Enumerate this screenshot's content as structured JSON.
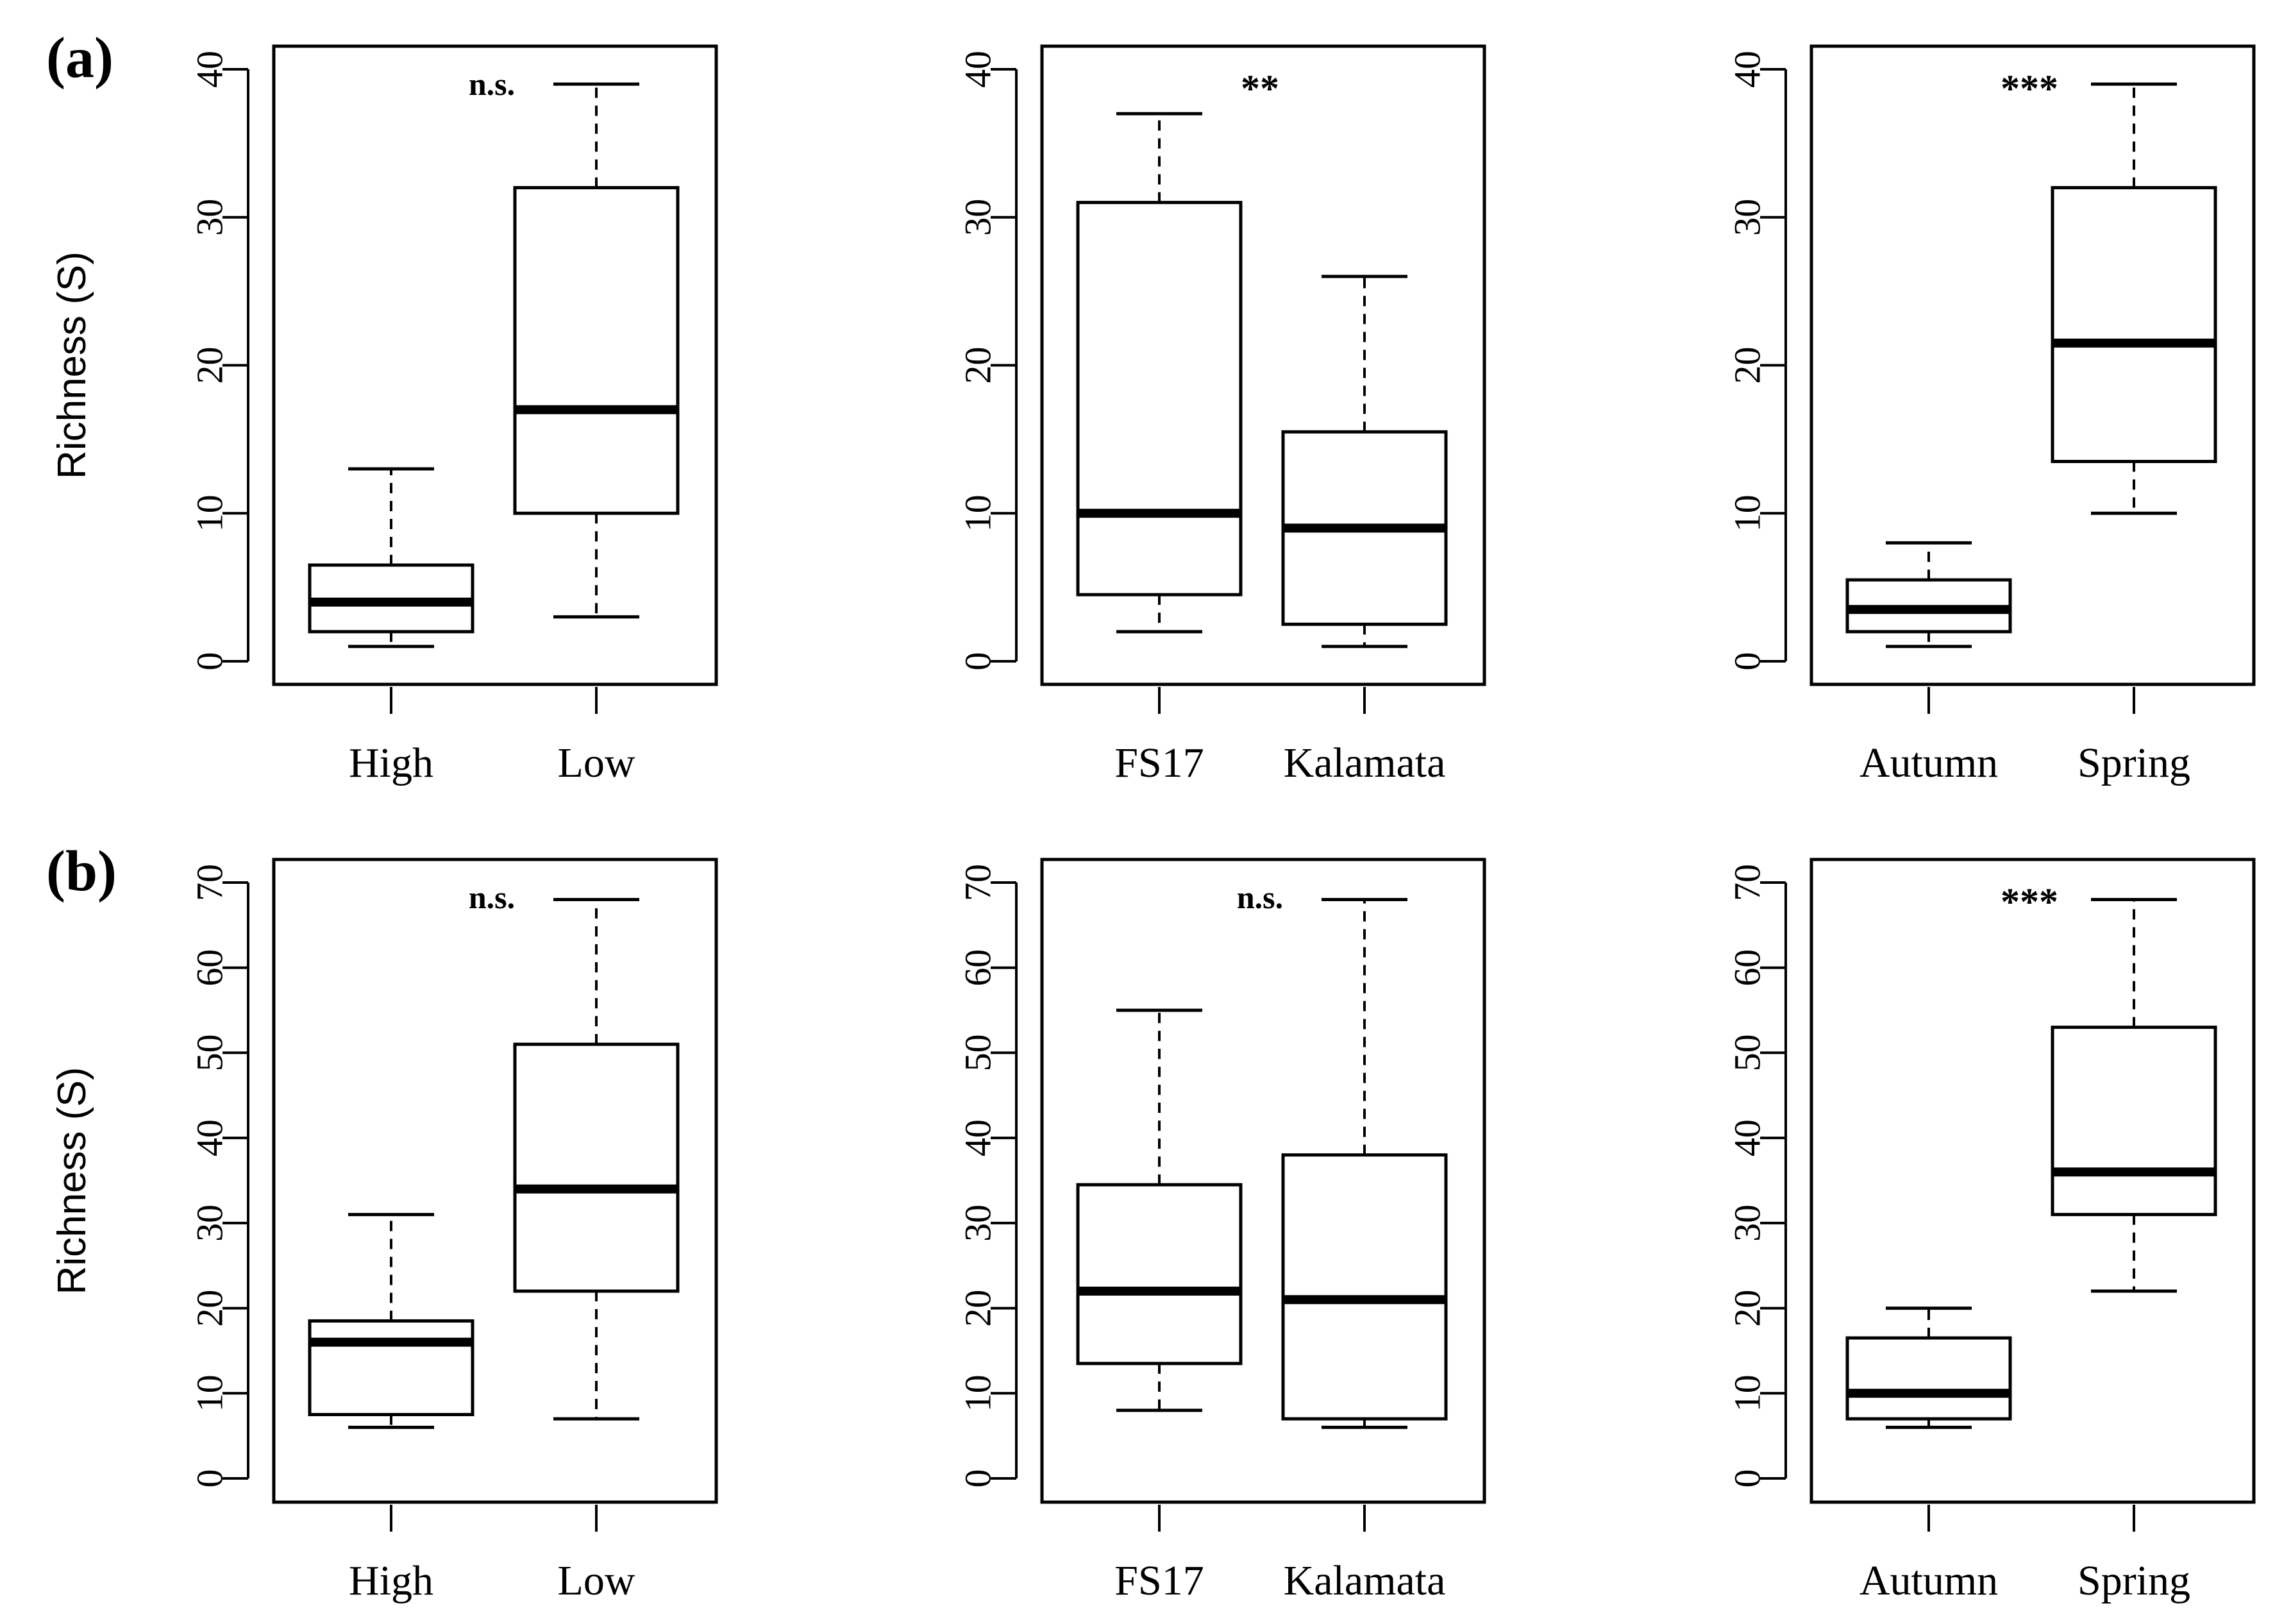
{
  "chart_data": [
    {
      "type": "box",
      "panel": "(a)",
      "ylabel": "Richness (S)",
      "ylim": [
        0,
        40
      ],
      "yticks": [
        "0",
        "10",
        "20",
        "30",
        "40"
      ],
      "annotation": "n.s.",
      "categories": [
        "High",
        "Low"
      ],
      "boxes": [
        {
          "whisker_low": 1,
          "q1": 2,
          "median": 4,
          "q3": 6.5,
          "whisker_high": 13
        },
        {
          "whisker_low": 3,
          "q1": 10,
          "median": 17,
          "q3": 32,
          "whisker_high": 39
        }
      ]
    },
    {
      "type": "box",
      "panel": "",
      "ylabel": "",
      "ylim": [
        0,
        40
      ],
      "yticks": [
        "0",
        "10",
        "20",
        "30",
        "40"
      ],
      "annotation": "**",
      "categories": [
        "FS17",
        "Kalamata"
      ],
      "boxes": [
        {
          "whisker_low": 2,
          "q1": 4.5,
          "median": 10,
          "q3": 31,
          "whisker_high": 37
        },
        {
          "whisker_low": 1,
          "q1": 2.5,
          "median": 9,
          "q3": 15.5,
          "whisker_high": 26
        }
      ]
    },
    {
      "type": "box",
      "panel": "",
      "ylabel": "",
      "ylim": [
        0,
        40
      ],
      "yticks": [
        "0",
        "10",
        "20",
        "30",
        "40"
      ],
      "annotation": "***",
      "categories": [
        "Autumn",
        "Spring"
      ],
      "boxes": [
        {
          "whisker_low": 1,
          "q1": 2,
          "median": 3.5,
          "q3": 5.5,
          "whisker_high": 8
        },
        {
          "whisker_low": 10,
          "q1": 13.5,
          "median": 21.5,
          "q3": 32,
          "whisker_high": 39
        }
      ]
    },
    {
      "type": "box",
      "panel": "(b)",
      "ylabel": "Richness (S)",
      "ylim": [
        0,
        70
      ],
      "yticks": [
        "0",
        "10",
        "20",
        "30",
        "40",
        "50",
        "60",
        "70"
      ],
      "annotation": "n.s.",
      "categories": [
        "High",
        "Low"
      ],
      "boxes": [
        {
          "whisker_low": 6,
          "q1": 7.5,
          "median": 16,
          "q3": 18.5,
          "whisker_high": 31
        },
        {
          "whisker_low": 7,
          "q1": 22,
          "median": 34,
          "q3": 51,
          "whisker_high": 68
        }
      ]
    },
    {
      "type": "box",
      "panel": "",
      "ylabel": "",
      "ylim": [
        0,
        70
      ],
      "yticks": [
        "0",
        "10",
        "20",
        "30",
        "40",
        "50",
        "60",
        "70"
      ],
      "annotation": "n.s.",
      "categories": [
        "FS17",
        "Kalamata"
      ],
      "boxes": [
        {
          "whisker_low": 8,
          "q1": 13.5,
          "median": 22,
          "q3": 34.5,
          "whisker_high": 55
        },
        {
          "whisker_low": 6,
          "q1": 7,
          "median": 21,
          "q3": 38,
          "whisker_high": 68
        }
      ]
    },
    {
      "type": "box",
      "panel": "",
      "ylabel": "",
      "ylim": [
        0,
        70
      ],
      "yticks": [
        "0",
        "10",
        "20",
        "30",
        "40",
        "50",
        "60",
        "70"
      ],
      "annotation": "***",
      "categories": [
        "Autumn",
        "Spring"
      ],
      "boxes": [
        {
          "whisker_low": 6,
          "q1": 7,
          "median": 10,
          "q3": 16.5,
          "whisker_high": 20
        },
        {
          "whisker_low": 22,
          "q1": 31,
          "median": 36,
          "q3": 53,
          "whisker_high": 68
        }
      ]
    }
  ]
}
